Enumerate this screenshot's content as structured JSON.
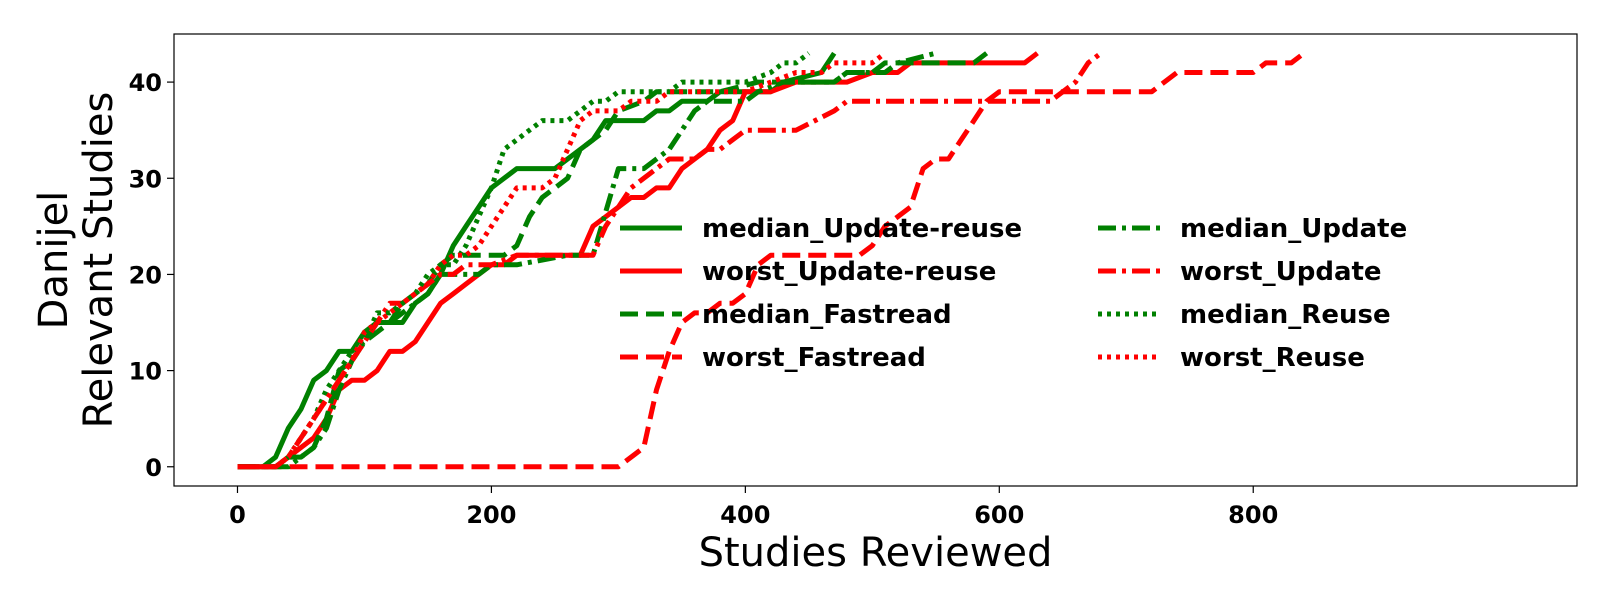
{
  "chart_data": {
    "type": "line",
    "xlabel": "Studies Reviewed",
    "ylabel_lines": [
      "Danijel",
      "Relevant Studies"
    ],
    "xlim": [
      -50,
      1055
    ],
    "ylim": [
      -2,
      45
    ],
    "xticks": [
      0,
      200,
      400,
      600,
      800
    ],
    "yticks": [
      0,
      10,
      20,
      30,
      40
    ],
    "grid": false,
    "legend_position": "center-right",
    "series": [
      {
        "name": "median_Update-reuse",
        "color": "#008000",
        "style": "solid",
        "points": [
          [
            0,
            0
          ],
          [
            20,
            0
          ],
          [
            30,
            1
          ],
          [
            40,
            4
          ],
          [
            50,
            6
          ],
          [
            60,
            9
          ],
          [
            70,
            10
          ],
          [
            80,
            12
          ],
          [
            90,
            12
          ],
          [
            100,
            14
          ],
          [
            110,
            15
          ],
          [
            120,
            15
          ],
          [
            130,
            15
          ],
          [
            140,
            17
          ],
          [
            150,
            18
          ],
          [
            160,
            20
          ],
          [
            170,
            23
          ],
          [
            180,
            25
          ],
          [
            190,
            27
          ],
          [
            200,
            29
          ],
          [
            210,
            30
          ],
          [
            220,
            31
          ],
          [
            240,
            31
          ],
          [
            250,
            31
          ],
          [
            260,
            32
          ],
          [
            280,
            34
          ],
          [
            290,
            36
          ],
          [
            310,
            36
          ],
          [
            320,
            36
          ],
          [
            330,
            37
          ],
          [
            340,
            37
          ],
          [
            350,
            38
          ],
          [
            370,
            38
          ],
          [
            380,
            39
          ],
          [
            420,
            39
          ],
          [
            430,
            40
          ],
          [
            460,
            41
          ],
          [
            470,
            43
          ]
        ]
      },
      {
        "name": "worst_Update-reuse",
        "color": "#ff0000",
        "style": "solid",
        "points": [
          [
            0,
            0
          ],
          [
            30,
            0
          ],
          [
            40,
            1
          ],
          [
            50,
            2
          ],
          [
            60,
            3
          ],
          [
            70,
            5
          ],
          [
            80,
            8
          ],
          [
            90,
            9
          ],
          [
            100,
            9
          ],
          [
            110,
            10
          ],
          [
            120,
            12
          ],
          [
            130,
            12
          ],
          [
            140,
            13
          ],
          [
            150,
            15
          ],
          [
            160,
            17
          ],
          [
            170,
            18
          ],
          [
            180,
            19
          ],
          [
            190,
            20
          ],
          [
            200,
            21
          ],
          [
            210,
            21
          ],
          [
            220,
            22
          ],
          [
            260,
            22
          ],
          [
            270,
            22
          ],
          [
            280,
            25
          ],
          [
            290,
            26
          ],
          [
            300,
            27
          ],
          [
            310,
            28
          ],
          [
            320,
            28
          ],
          [
            330,
            29
          ],
          [
            340,
            29
          ],
          [
            350,
            31
          ],
          [
            360,
            32
          ],
          [
            370,
            33
          ],
          [
            380,
            35
          ],
          [
            390,
            36
          ],
          [
            400,
            39
          ],
          [
            420,
            39
          ],
          [
            440,
            40
          ],
          [
            480,
            40
          ],
          [
            500,
            41
          ],
          [
            520,
            41
          ],
          [
            530,
            42
          ],
          [
            620,
            42
          ],
          [
            630,
            43
          ]
        ]
      },
      {
        "name": "median_Fastread",
        "color": "#008000",
        "style": "dashed",
        "points": [
          [
            0,
            0
          ],
          [
            30,
            0
          ],
          [
            40,
            1
          ],
          [
            50,
            1
          ],
          [
            60,
            2
          ],
          [
            70,
            5
          ],
          [
            80,
            10
          ],
          [
            90,
            11
          ],
          [
            100,
            13
          ],
          [
            110,
            14
          ],
          [
            120,
            15
          ],
          [
            130,
            17
          ],
          [
            140,
            18
          ],
          [
            150,
            19
          ],
          [
            160,
            21
          ],
          [
            170,
            22
          ],
          [
            190,
            22
          ],
          [
            210,
            22
          ],
          [
            220,
            23
          ],
          [
            230,
            26
          ],
          [
            240,
            28
          ],
          [
            260,
            30
          ],
          [
            270,
            33
          ],
          [
            280,
            34
          ],
          [
            290,
            35
          ],
          [
            300,
            37
          ],
          [
            320,
            38
          ],
          [
            330,
            39
          ],
          [
            380,
            39
          ],
          [
            410,
            40
          ],
          [
            440,
            40
          ],
          [
            470,
            40
          ],
          [
            480,
            41
          ],
          [
            500,
            41
          ],
          [
            510,
            42
          ],
          [
            560,
            42
          ],
          [
            580,
            42
          ],
          [
            590,
            43
          ]
        ]
      },
      {
        "name": "worst_Fastread",
        "color": "#ff0000",
        "style": "dashed",
        "points": [
          [
            0,
            0
          ],
          [
            300,
            0
          ],
          [
            320,
            2
          ],
          [
            330,
            8
          ],
          [
            340,
            12
          ],
          [
            350,
            15
          ],
          [
            360,
            16
          ],
          [
            370,
            16
          ],
          [
            380,
            17
          ],
          [
            390,
            17
          ],
          [
            400,
            18
          ],
          [
            410,
            21
          ],
          [
            420,
            22
          ],
          [
            450,
            22
          ],
          [
            480,
            22
          ],
          [
            490,
            22
          ],
          [
            500,
            23
          ],
          [
            510,
            25
          ],
          [
            520,
            26
          ],
          [
            530,
            27
          ],
          [
            540,
            31
          ],
          [
            550,
            32
          ],
          [
            560,
            32
          ],
          [
            570,
            34
          ],
          [
            580,
            36
          ],
          [
            590,
            38
          ],
          [
            600,
            39
          ],
          [
            650,
            39
          ],
          [
            660,
            39
          ],
          [
            710,
            39
          ],
          [
            720,
            39
          ],
          [
            740,
            41
          ],
          [
            800,
            41
          ],
          [
            810,
            42
          ],
          [
            830,
            42
          ],
          [
            840,
            43
          ]
        ]
      },
      {
        "name": "median_Update",
        "color": "#008000",
        "style": "dashdot",
        "points": [
          [
            0,
            0
          ],
          [
            40,
            0
          ],
          [
            50,
            1
          ],
          [
            60,
            2
          ],
          [
            70,
            4
          ],
          [
            80,
            8
          ],
          [
            90,
            11
          ],
          [
            100,
            13
          ],
          [
            110,
            15
          ],
          [
            120,
            15
          ],
          [
            130,
            16
          ],
          [
            140,
            17
          ],
          [
            150,
            18
          ],
          [
            160,
            20
          ],
          [
            170,
            20
          ],
          [
            180,
            20
          ],
          [
            190,
            20
          ],
          [
            200,
            21
          ],
          [
            210,
            21
          ],
          [
            220,
            21
          ],
          [
            260,
            22
          ],
          [
            280,
            22
          ],
          [
            300,
            31
          ],
          [
            310,
            31
          ],
          [
            320,
            31
          ],
          [
            330,
            32
          ],
          [
            340,
            33
          ],
          [
            350,
            35
          ],
          [
            360,
            37
          ],
          [
            370,
            38
          ],
          [
            400,
            38
          ],
          [
            410,
            39
          ],
          [
            430,
            40
          ],
          [
            440,
            40
          ],
          [
            460,
            40
          ],
          [
            470,
            40
          ],
          [
            480,
            41
          ],
          [
            510,
            41
          ],
          [
            520,
            42
          ],
          [
            550,
            43
          ]
        ]
      },
      {
        "name": "worst_Update",
        "color": "#ff0000",
        "style": "dashdot",
        "points": [
          [
            0,
            0
          ],
          [
            30,
            0
          ],
          [
            40,
            1
          ],
          [
            50,
            3
          ],
          [
            60,
            5
          ],
          [
            70,
            7
          ],
          [
            80,
            9
          ],
          [
            90,
            11
          ],
          [
            100,
            13
          ],
          [
            110,
            15
          ],
          [
            120,
            17
          ],
          [
            130,
            17
          ],
          [
            140,
            18
          ],
          [
            150,
            19
          ],
          [
            160,
            20
          ],
          [
            170,
            20
          ],
          [
            180,
            21
          ],
          [
            190,
            21
          ],
          [
            200,
            21
          ],
          [
            220,
            22
          ],
          [
            270,
            22
          ],
          [
            280,
            22
          ],
          [
            290,
            25
          ],
          [
            300,
            27
          ],
          [
            310,
            29
          ],
          [
            320,
            30
          ],
          [
            330,
            31
          ],
          [
            340,
            32
          ],
          [
            360,
            32
          ],
          [
            370,
            33
          ],
          [
            380,
            33
          ],
          [
            390,
            34
          ],
          [
            400,
            35
          ],
          [
            420,
            35
          ],
          [
            440,
            35
          ],
          [
            470,
            37
          ],
          [
            480,
            38
          ],
          [
            540,
            38
          ],
          [
            600,
            38
          ],
          [
            640,
            38
          ],
          [
            650,
            39
          ],
          [
            660,
            40
          ],
          [
            670,
            42
          ],
          [
            680,
            43
          ]
        ]
      },
      {
        "name": "median_Reuse",
        "color": "#008000",
        "style": "dotted",
        "points": [
          [
            0,
            0
          ],
          [
            30,
            0
          ],
          [
            40,
            1
          ],
          [
            50,
            3
          ],
          [
            60,
            5
          ],
          [
            70,
            8
          ],
          [
            80,
            10
          ],
          [
            90,
            12
          ],
          [
            100,
            13
          ],
          [
            110,
            16
          ],
          [
            120,
            16
          ],
          [
            130,
            17
          ],
          [
            140,
            18
          ],
          [
            150,
            20
          ],
          [
            160,
            21
          ],
          [
            170,
            21
          ],
          [
            180,
            23
          ],
          [
            190,
            26
          ],
          [
            200,
            29
          ],
          [
            210,
            33
          ],
          [
            220,
            34
          ],
          [
            240,
            36
          ],
          [
            260,
            36
          ],
          [
            270,
            37
          ],
          [
            280,
            38
          ],
          [
            290,
            38
          ],
          [
            300,
            39
          ],
          [
            340,
            39
          ],
          [
            350,
            40
          ],
          [
            360,
            40
          ],
          [
            390,
            40
          ],
          [
            400,
            40
          ],
          [
            420,
            41
          ],
          [
            430,
            42
          ],
          [
            440,
            42
          ],
          [
            450,
            43
          ]
        ]
      },
      {
        "name": "worst_Reuse",
        "color": "#ff0000",
        "style": "dotted",
        "points": [
          [
            0,
            0
          ],
          [
            30,
            0
          ],
          [
            40,
            1
          ],
          [
            50,
            3
          ],
          [
            60,
            5
          ],
          [
            70,
            7
          ],
          [
            80,
            9
          ],
          [
            90,
            11
          ],
          [
            100,
            14
          ],
          [
            110,
            15
          ],
          [
            120,
            16
          ],
          [
            130,
            17
          ],
          [
            140,
            18
          ],
          [
            150,
            19
          ],
          [
            160,
            21
          ],
          [
            170,
            22
          ],
          [
            180,
            22
          ],
          [
            190,
            23
          ],
          [
            200,
            25
          ],
          [
            210,
            27
          ],
          [
            220,
            29
          ],
          [
            240,
            29
          ],
          [
            250,
            30
          ],
          [
            260,
            33
          ],
          [
            270,
            36
          ],
          [
            280,
            37
          ],
          [
            300,
            37
          ],
          [
            310,
            38
          ],
          [
            330,
            38
          ],
          [
            340,
            39
          ],
          [
            400,
            39
          ],
          [
            420,
            40
          ],
          [
            440,
            41
          ],
          [
            460,
            41
          ],
          [
            470,
            42
          ],
          [
            480,
            42
          ],
          [
            500,
            42
          ],
          [
            510,
            43
          ]
        ]
      }
    ],
    "legend_columns": [
      [
        "median_Update-reuse",
        "worst_Update-reuse",
        "median_Fastread",
        "worst_Fastread"
      ],
      [
        "median_Update",
        "worst_Update",
        "median_Reuse",
        "worst_Reuse"
      ]
    ]
  }
}
